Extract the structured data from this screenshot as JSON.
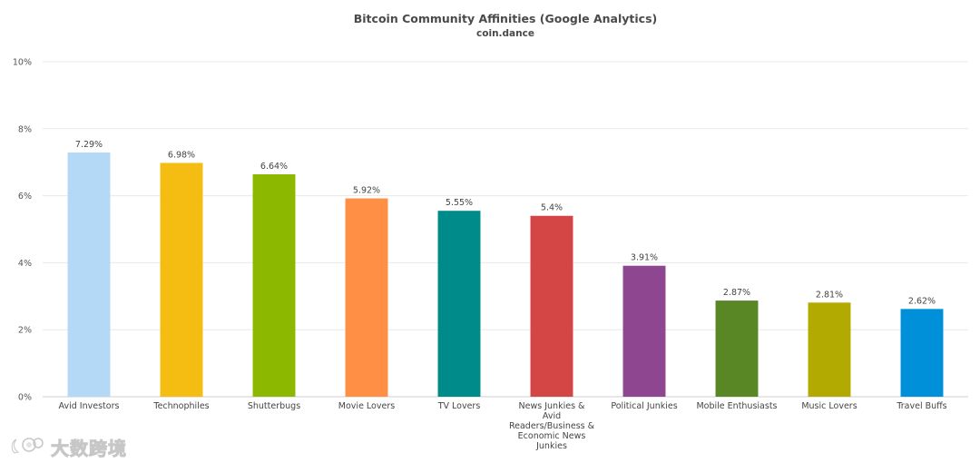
{
  "chart_data": {
    "type": "bar",
    "title": "Bitcoin Community Affinities (Google Analytics)",
    "subtitle": "coin.dance",
    "xlabel": "",
    "ylabel": "",
    "ylim": [
      0,
      10
    ],
    "y_ticks": [
      "0%",
      "2%",
      "4%",
      "6%",
      "8%",
      "10%"
    ],
    "grid": true,
    "legend": "none",
    "categories": [
      [
        "Avid Investors"
      ],
      [
        "Technophiles"
      ],
      [
        "Shutterbugs"
      ],
      [
        "Movie Lovers"
      ],
      [
        "TV Lovers"
      ],
      [
        "News Junkies &",
        "Avid",
        "Readers/Business &",
        "Economic News",
        "Junkies"
      ],
      [
        "Political Junkies"
      ],
      [
        "Mobile Enthusiasts"
      ],
      [
        "Music Lovers"
      ],
      [
        "Travel Buffs"
      ]
    ],
    "values": [
      7.29,
      6.98,
      6.64,
      5.92,
      5.55,
      5.4,
      3.91,
      2.87,
      2.81,
      2.62
    ],
    "data_labels": [
      "7.29%",
      "6.98%",
      "6.64%",
      "5.92%",
      "5.55%",
      "5.4%",
      "3.91%",
      "2.87%",
      "2.81%",
      "2.62%"
    ],
    "colors": [
      "#b3d9f7",
      "#f5bc12",
      "#8cb800",
      "#ff8f45",
      "#008b8b",
      "#d44545",
      "#8e4690",
      "#5a8725",
      "#b2aa00",
      "#0090d9"
    ]
  },
  "watermark": {
    "icon": "logo-icon",
    "text": "大数跨境"
  }
}
